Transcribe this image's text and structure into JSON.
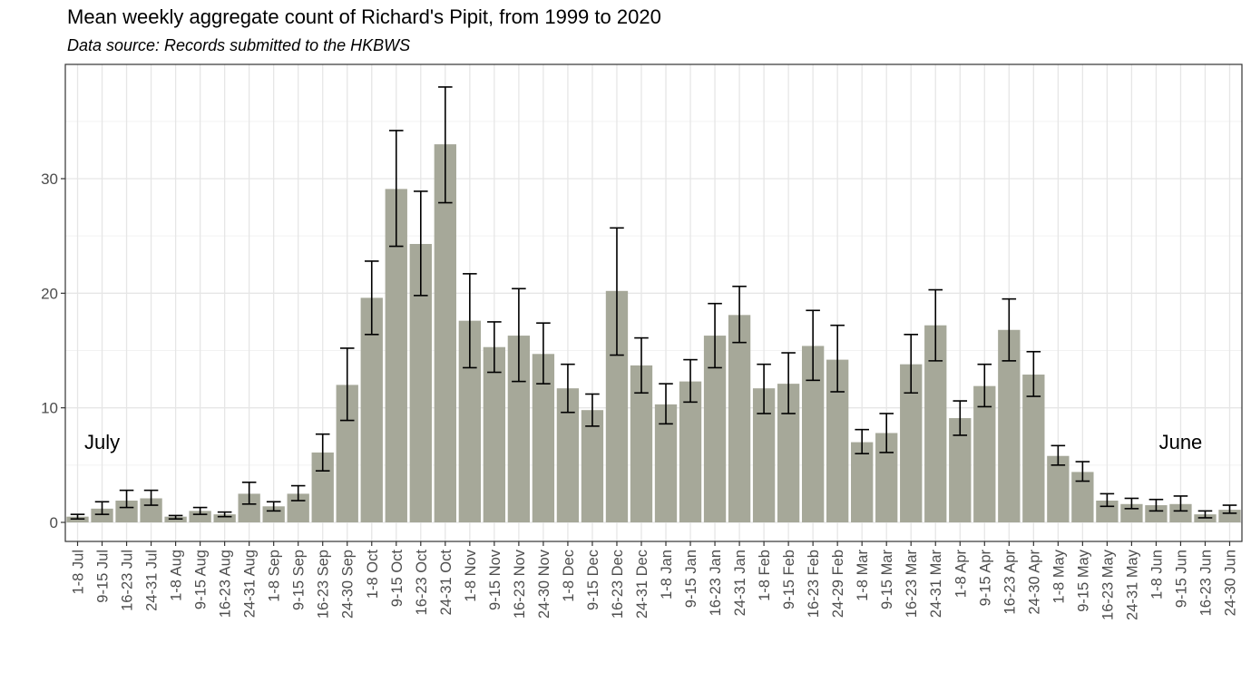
{
  "chart_data": {
    "type": "bar",
    "title": "Mean weekly aggregate count of Richard's Pipit, from 1999 to 2020",
    "subtitle": "Data source: Records submitted to the HKBWS",
    "xlabel": "",
    "ylabel": "",
    "ylim": [
      0,
      39
    ],
    "yticks": [
      0,
      10,
      20,
      30
    ],
    "grid": true,
    "bar_color": "#a6a899",
    "categories": [
      "1-8 Jul",
      "9-15 Jul",
      "16-23 Jul",
      "24-31 Jul",
      "1-8 Aug",
      "9-15 Aug",
      "16-23 Aug",
      "24-31 Aug",
      "1-8 Sep",
      "9-15 Sep",
      "16-23 Sep",
      "24-30 Sep",
      "1-8 Oct",
      "9-15 Oct",
      "16-23 Oct",
      "24-31 Oct",
      "1-8 Nov",
      "9-15 Nov",
      "16-23 Nov",
      "24-30 Nov",
      "1-8 Dec",
      "9-15 Dec",
      "16-23 Dec",
      "24-31 Dec",
      "1-8 Jan",
      "9-15 Jan",
      "16-23 Jan",
      "24-31 Jan",
      "1-8 Feb",
      "9-15 Feb",
      "16-23 Feb",
      "24-29 Feb",
      "1-8 Mar",
      "9-15 Mar",
      "16-23 Mar",
      "24-31 Mar",
      "1-8 Apr",
      "9-15 Apr",
      "16-23 Apr",
      "24-30 Apr",
      "1-8 May",
      "9-15 May",
      "16-23 May",
      "24-31 May",
      "1-8 Jun",
      "9-15 Jun",
      "16-23 Jun",
      "24-30 Jun"
    ],
    "values": [
      0.5,
      1.2,
      1.9,
      2.1,
      0.5,
      1.0,
      0.7,
      2.5,
      1.4,
      2.5,
      6.1,
      12.0,
      19.6,
      29.1,
      24.3,
      33.0,
      17.6,
      15.3,
      16.3,
      14.7,
      11.7,
      9.8,
      20.2,
      13.7,
      10.3,
      12.3,
      16.3,
      18.1,
      11.7,
      12.1,
      15.4,
      14.2,
      7.0,
      7.8,
      13.8,
      17.2,
      9.1,
      11.9,
      16.8,
      12.9,
      5.8,
      4.4,
      1.9,
      1.6,
      1.5,
      1.6,
      0.7,
      1.1
    ],
    "error_low": [
      0.3,
      0.7,
      1.3,
      1.5,
      0.3,
      0.7,
      0.5,
      1.6,
      1.0,
      1.9,
      4.5,
      8.9,
      16.4,
      24.1,
      19.8,
      27.9,
      13.5,
      13.1,
      12.3,
      12.1,
      9.6,
      8.4,
      14.6,
      11.3,
      8.6,
      10.5,
      13.5,
      15.7,
      9.5,
      9.5,
      12.4,
      11.4,
      6.0,
      6.1,
      11.3,
      14.1,
      7.6,
      10.1,
      14.1,
      11.0,
      5.0,
      3.6,
      1.4,
      1.2,
      1.0,
      1.0,
      0.4,
      0.8
    ],
    "error_high": [
      0.7,
      1.8,
      2.8,
      2.8,
      0.6,
      1.3,
      0.9,
      3.5,
      1.8,
      3.2,
      7.7,
      15.2,
      22.8,
      34.2,
      28.9,
      38.0,
      21.7,
      17.5,
      20.4,
      17.4,
      13.8,
      11.2,
      25.7,
      16.1,
      12.1,
      14.2,
      19.1,
      20.6,
      13.8,
      14.8,
      18.5,
      17.2,
      8.1,
      9.5,
      16.4,
      20.3,
      10.6,
      13.8,
      19.5,
      14.9,
      6.7,
      5.3,
      2.5,
      2.1,
      2.0,
      2.3,
      1.0,
      1.5
    ],
    "annotations": [
      {
        "text": "July",
        "category_index": 1,
        "y": 6.4
      },
      {
        "text": "June",
        "category_index": 45,
        "y": 6.4
      }
    ]
  }
}
